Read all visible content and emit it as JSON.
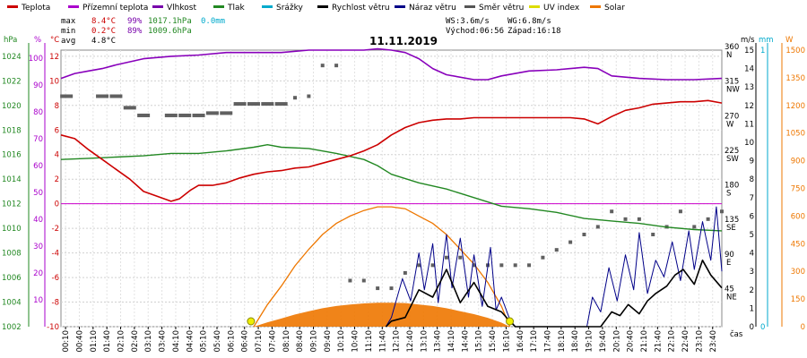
{
  "chart_data": {
    "type": "line",
    "title": "11.11.2019",
    "legend": [
      {
        "label": "Teplota",
        "color": "#cc0000"
      },
      {
        "label": "Přízemní teplota",
        "color": "#aa00cc"
      },
      {
        "label": "Vlhkost",
        "color": "#7700aa"
      },
      {
        "label": "Tlak",
        "color": "#228822"
      },
      {
        "label": "Srážky",
        "color": "#00aacc"
      },
      {
        "label": "Rychlost větru",
        "color": "#000000"
      },
      {
        "label": "Náraz větru",
        "color": "#000088"
      },
      {
        "label": "Směr větru",
        "color": "#555555"
      },
      {
        "label": "UV index",
        "color": "#dddd00"
      },
      {
        "label": "Solar",
        "color": "#ee7700"
      }
    ],
    "stats": {
      "max_label": "max",
      "max_temp": "8.4°C",
      "max_hum": "99%",
      "max_press": "1017.1hPa",
      "max_rain": "0.0mm",
      "min_label": "min",
      "min_temp": "0.2°C",
      "min_hum": "89%",
      "min_press": "1009.6hPa",
      "avg_label": "avg",
      "avg_temp": "4.8°C",
      "ws": "WS:3.6m/s",
      "wg": "WG:6.8m/s",
      "sunrise": "Východ:06:56",
      "sunset": "Západ:16:18"
    },
    "axes": {
      "hpa": {
        "unit": "hPa",
        "ticks": [
          "1002",
          "1004",
          "1006",
          "1008",
          "1010",
          "1012",
          "1014",
          "1016",
          "1018",
          "1020",
          "1022",
          "1024"
        ],
        "range": [
          1002,
          1024.5
        ]
      },
      "percent": {
        "unit": "%",
        "ticks": [
          "10",
          "20",
          "30",
          "40",
          "50",
          "60",
          "70",
          "80",
          "90",
          "100"
        ]
      },
      "celsius": {
        "unit": "°C",
        "ticks": [
          "-10",
          "-8",
          "-6",
          "-4",
          "-2",
          "0",
          "2",
          "4",
          "6",
          "8",
          "10",
          "12"
        ],
        "range": [
          -10,
          12.5
        ]
      },
      "direction": {
        "ticks": [
          {
            "deg": "45",
            "dir": "NE"
          },
          {
            "deg": "90",
            "dir": "E"
          },
          {
            "deg": "135",
            "dir": "SE"
          },
          {
            "deg": "180",
            "dir": "S"
          },
          {
            "deg": "225",
            "dir": "SW"
          },
          {
            "deg": "270",
            "dir": "W"
          },
          {
            "deg": "315",
            "dir": "NW"
          },
          {
            "deg": "360",
            "dir": "N"
          }
        ]
      },
      "wind": {
        "unit": "m/s",
        "ticks": [
          "0",
          "1",
          "2",
          "3",
          "4",
          "5",
          "6",
          "7",
          "8",
          "9",
          "10",
          "11",
          "12",
          "13",
          "14",
          "15"
        ],
        "range": [
          0,
          15
        ]
      },
      "rain": {
        "unit": "mm",
        "ticks": [
          "0",
          "1"
        ]
      },
      "solar": {
        "unit": "W",
        "ticks": [
          "0",
          "150",
          "300",
          "450",
          "600",
          "750",
          "900",
          "1050",
          "1200",
          "1350",
          "1500"
        ],
        "range": [
          0,
          1500
        ]
      },
      "time_label": "čas",
      "x_ticks": [
        "00:10",
        "00:40",
        "01:10",
        "01:40",
        "02:10",
        "02:40",
        "03:10",
        "03:40",
        "04:10",
        "04:40",
        "05:10",
        "05:40",
        "06:10",
        "06:40",
        "07:10",
        "07:40",
        "08:10",
        "08:40",
        "09:10",
        "09:40",
        "10:10",
        "10:40",
        "11:10",
        "11:40",
        "12:10",
        "12:40",
        "13:10",
        "13:40",
        "14:10",
        "14:40",
        "15:10",
        "15:40",
        "16:10",
        "16:40",
        "17:10",
        "17:40",
        "18:10",
        "18:40",
        "19:10",
        "19:40",
        "20:10",
        "20:40",
        "21:10",
        "21:40",
        "22:10",
        "22:40",
        "23:10",
        "23:40"
      ]
    },
    "series": [
      {
        "name": "Teplota",
        "axis": "celsius",
        "color": "#cc0000",
        "x": [
          0,
          0.5,
          1,
          1.5,
          2,
          2.5,
          3,
          3.5,
          4,
          4.3,
          4.7,
          5,
          5.5,
          6,
          6.5,
          7,
          7.5,
          8,
          8.5,
          9,
          9.5,
          10,
          10.5,
          11,
          11.5,
          12,
          12.5,
          13,
          13.5,
          14,
          14.5,
          15,
          15.5,
          16,
          16.5,
          17,
          17.5,
          18,
          18.5,
          19,
          19.5,
          20,
          20.5,
          21,
          21.5,
          22,
          22.5,
          23,
          23.5,
          24
        ],
        "y": [
          5.6,
          5.3,
          4.4,
          3.6,
          2.8,
          2.0,
          1.0,
          0.6,
          0.2,
          0.4,
          1.1,
          1.5,
          1.5,
          1.7,
          2.1,
          2.4,
          2.6,
          2.7,
          2.9,
          3.0,
          3.3,
          3.6,
          3.9,
          4.3,
          4.8,
          5.6,
          6.2,
          6.6,
          6.8,
          6.9,
          6.9,
          7.0,
          7.0,
          7.0,
          7.0,
          7.0,
          7.0,
          7.0,
          7.0,
          6.9,
          6.5,
          7.1,
          7.6,
          7.8,
          8.1,
          8.2,
          8.3,
          8.3,
          8.4,
          8.2
        ]
      },
      {
        "name": "Vlhkost",
        "axis": "celsius",
        "color": "#8800bb",
        "x": [
          0,
          0.5,
          1,
          1.5,
          2,
          3,
          4,
          5,
          6,
          7,
          8,
          9,
          10,
          11,
          11.5,
          12,
          12.5,
          13,
          13.5,
          14,
          15,
          15.5,
          16,
          16.5,
          17,
          18,
          19,
          19.5,
          20,
          21,
          22,
          23,
          24
        ],
        "y": [
          10.2,
          10.6,
          10.8,
          11.0,
          11.3,
          11.8,
          12.0,
          12.1,
          12.3,
          12.3,
          12.3,
          12.5,
          12.5,
          12.5,
          12.6,
          12.5,
          12.3,
          11.8,
          11.0,
          10.5,
          10.1,
          10.1,
          10.4,
          10.6,
          10.8,
          10.9,
          11.1,
          11.0,
          10.4,
          10.2,
          10.1,
          10.1,
          10.2
        ]
      },
      {
        "name": "Tlak",
        "axis": "hpa",
        "color": "#228822",
        "x": [
          0,
          1,
          2,
          3,
          4,
          5,
          6,
          7,
          7.5,
          8,
          9,
          10,
          11,
          11.5,
          12,
          13,
          14,
          15,
          16,
          17,
          18,
          19,
          20,
          21,
          22,
          23,
          24
        ],
        "y": [
          1015.6,
          1015.7,
          1015.8,
          1015.9,
          1016.1,
          1016.1,
          1016.3,
          1016.6,
          1016.8,
          1016.6,
          1016.5,
          1016.1,
          1015.6,
          1015.1,
          1014.4,
          1013.7,
          1013.2,
          1012.5,
          1011.8,
          1011.6,
          1011.3,
          1010.8,
          1010.6,
          1010.4,
          1010.1,
          1009.9,
          1009.8
        ]
      },
      {
        "name": "Rychlost větru",
        "axis": "wind",
        "color": "#000000",
        "x": [
          11.8,
          12,
          12.5,
          13,
          13.5,
          14,
          14.5,
          15,
          15.5,
          16,
          16.3,
          16.5,
          19.3,
          19.6,
          20,
          20.3,
          20.6,
          21,
          21.3,
          21.6,
          22,
          22.3,
          22.6,
          23,
          23.3,
          23.6,
          24
        ],
        "y": [
          0,
          0.3,
          0.5,
          2.0,
          1.6,
          3.1,
          1.3,
          2.4,
          1.1,
          0.8,
          0.3,
          0,
          0,
          0,
          0.8,
          0.6,
          1.2,
          0.7,
          1.4,
          1.8,
          2.2,
          2.8,
          3.1,
          2.3,
          3.6,
          2.8,
          2.1
        ]
      },
      {
        "name": "Náraz větru",
        "axis": "wind",
        "color": "#000088",
        "x": [
          11.8,
          12,
          12.4,
          12.7,
          13,
          13.2,
          13.5,
          13.7,
          14,
          14.2,
          14.5,
          14.8,
          15,
          15.3,
          15.6,
          15.8,
          16,
          16.3,
          16.5,
          19.1,
          19.3,
          19.6,
          19.9,
          20.2,
          20.5,
          20.8,
          21,
          21.3,
          21.6,
          21.9,
          22.2,
          22.5,
          22.8,
          23,
          23.3,
          23.6,
          23.8,
          24
        ],
        "y": [
          0,
          0.5,
          2.6,
          1.4,
          4.0,
          2.0,
          4.5,
          1.3,
          5.0,
          2.1,
          4.8,
          1.6,
          3.9,
          1.1,
          4.3,
          0.9,
          1.6,
          0.4,
          0,
          0,
          1.6,
          0.8,
          3.2,
          1.4,
          3.9,
          2.0,
          5.1,
          1.8,
          3.6,
          2.7,
          4.6,
          2.5,
          5.2,
          3.1,
          5.7,
          3.6,
          6.5,
          3.0
        ]
      },
      {
        "name": "Směr větru",
        "axis": "direction",
        "color": "#555555",
        "x": [
          0.2,
          1.5,
          2,
          2.5,
          3,
          4,
          4.5,
          5,
          5.5,
          6,
          6.5,
          7,
          7.5,
          8,
          8.5,
          9,
          9.5,
          10,
          10.5,
          11,
          11.5,
          12,
          12.5,
          13,
          13.5,
          14,
          14.5,
          15,
          15.5,
          16,
          16.5,
          17,
          17.5,
          18,
          18.5,
          19,
          19.5,
          20,
          20.5,
          21,
          21.5,
          22,
          22.5,
          23,
          23.5,
          24
        ],
        "y": [
          300,
          300,
          300,
          285,
          275,
          275,
          275,
          275,
          278,
          278,
          290,
          290,
          290,
          290,
          298,
          300,
          340,
          340,
          60,
          60,
          50,
          50,
          70,
          80,
          80,
          90,
          90,
          80,
          80,
          80,
          80,
          80,
          90,
          100,
          110,
          120,
          130,
          150,
          140,
          140,
          120,
          130,
          150,
          130,
          140,
          150
        ]
      },
      {
        "name": "Solar",
        "axis": "solar",
        "color": "#ee7700",
        "x": [
          7,
          7.5,
          8,
          8.5,
          9,
          9.5,
          10,
          10.5,
          11,
          11.5,
          12,
          12.5,
          13,
          13.5,
          14,
          14.5,
          15,
          15.5,
          16,
          16.3
        ],
        "y": [
          0,
          120,
          220,
          330,
          420,
          500,
          560,
          600,
          630,
          650,
          650,
          640,
          600,
          560,
          500,
          420,
          340,
          240,
          110,
          0
        ]
      }
    ],
    "uv_markers": [
      {
        "x": 6.9
      },
      {
        "x": 16.3
      }
    ]
  }
}
